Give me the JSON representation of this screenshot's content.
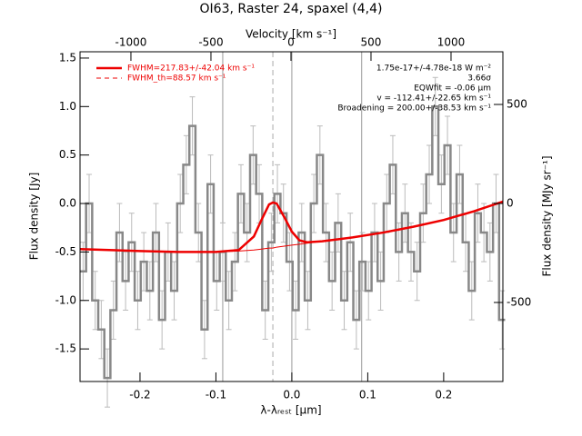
{
  "chart_data": {
    "type": "step",
    "title": "OI63, Raster 24, spaxel (4,4)",
    "xlabel": "λ-λᵣₑₛₜ [μm]",
    "ylabel": "Flux density [Jy]",
    "x2label": "Velocity [km s⁻¹]",
    "y2label": "Flux density [MJy sr⁻¹]",
    "xlim": [
      -0.279,
      0.278
    ],
    "ylim": [
      -1.836,
      1.565
    ],
    "x2lim": [
      -1318,
      1324
    ],
    "y2lim": [
      -899,
      766
    ],
    "xticks": [
      -0.2,
      -0.1,
      {
        "value": 0,
        "label": "0.0"
      },
      0.1,
      0.2
    ],
    "yticks": [
      -1.5,
      {
        "value": -1,
        "label": "-1.0"
      },
      -0.5,
      {
        "value": 0,
        "label": "0.0"
      },
      0.5,
      {
        "value": 1,
        "label": "1.0"
      },
      1.5
    ],
    "x2ticks": [
      -1000,
      -500,
      0,
      500,
      1000
    ],
    "y2ticks": [
      -500,
      0,
      500
    ],
    "color": "#888888",
    "error": 0.3,
    "x": [
      -0.275,
      -0.267,
      -0.259,
      -0.251,
      -0.243,
      -0.235,
      -0.227,
      -0.219,
      -0.211,
      -0.203,
      -0.195,
      -0.187,
      -0.179,
      -0.171,
      -0.163,
      -0.155,
      -0.147,
      -0.139,
      -0.131,
      -0.123,
      -0.115,
      -0.107,
      -0.099,
      -0.091,
      -0.083,
      -0.075,
      -0.067,
      -0.059,
      -0.051,
      -0.043,
      -0.035,
      -0.027,
      -0.019,
      -0.011,
      -0.003,
      0.005,
      0.013,
      0.021,
      0.029,
      0.037,
      0.045,
      0.053,
      0.061,
      0.069,
      0.077,
      0.085,
      0.093,
      0.101,
      0.109,
      0.117,
      0.125,
      0.133,
      0.141,
      0.149,
      0.157,
      0.165,
      0.173,
      0.181,
      0.189,
      0.197,
      0.205,
      0.213,
      0.221,
      0.229,
      0.237,
      0.245,
      0.253,
      0.261,
      0.269,
      0.277
    ],
    "values": [
      -0.7,
      0.0,
      -1.0,
      -1.3,
      -1.8,
      -1.1,
      -0.3,
      -0.8,
      -0.4,
      -1.0,
      -0.6,
      -0.9,
      -0.3,
      -1.2,
      -0.5,
      -0.9,
      0.0,
      0.4,
      0.8,
      -0.3,
      -1.3,
      0.2,
      -0.8,
      -0.5,
      -1.0,
      -0.6,
      0.1,
      -0.3,
      0.5,
      0.1,
      -1.1,
      -0.4,
      0.1,
      -0.1,
      -0.6,
      -1.1,
      -0.3,
      -1.0,
      0.0,
      0.5,
      -0.3,
      -0.8,
      -0.2,
      -1.0,
      -0.4,
      -1.2,
      -0.6,
      -0.9,
      -0.3,
      -0.8,
      0.0,
      0.4,
      -0.5,
      -0.1,
      -0.5,
      -0.7,
      -0.1,
      0.3,
      1.0,
      0.2,
      0.6,
      -0.3,
      0.3,
      -0.4,
      -0.9,
      -0.1,
      -0.3,
      -0.5,
      0.0,
      -1.2
    ],
    "vlines": [
      -0.091,
      0,
      0.092
    ],
    "center_line": -0.025,
    "fit": {
      "color": "#ee0000",
      "x": [
        -0.279,
        -0.2,
        -0.15,
        -0.1,
        -0.07,
        -0.05,
        -0.04,
        -0.03,
        -0.025,
        -0.02,
        -0.01,
        0.0,
        0.01,
        0.02,
        0.04,
        0.08,
        0.12,
        0.16,
        0.2,
        0.24,
        0.278
      ],
      "baseline": [
        -0.47,
        -0.49,
        -0.5,
        -0.5,
        -0.49,
        -0.48,
        -0.47,
        -0.46,
        -0.46,
        -0.45,
        -0.44,
        -0.43,
        -0.42,
        -0.41,
        -0.39,
        -0.35,
        -0.3,
        -0.24,
        -0.17,
        -0.08,
        0.02
      ],
      "y": [
        -0.47,
        -0.49,
        -0.5,
        -0.5,
        -0.48,
        -0.34,
        -0.17,
        -0.01,
        0.01,
        0.0,
        -0.14,
        -0.29,
        -0.38,
        -0.4,
        -0.39,
        -0.35,
        -0.3,
        -0.24,
        -0.17,
        -0.08,
        0.02
      ]
    },
    "legend": [
      "FWHM=217.83+/-42.04 km s⁻¹",
      "FWHM_th=88.57 km s⁻¹"
    ],
    "annotations": [
      "1.75e-17+/-4.78e-18 W m⁻²",
      "3.66σ",
      "EQWfit = -0.06 μm",
      "v = -112.41+/-22.65 km s⁻¹",
      "Broadening = 200.00+/-38.53 km s⁻¹"
    ]
  }
}
